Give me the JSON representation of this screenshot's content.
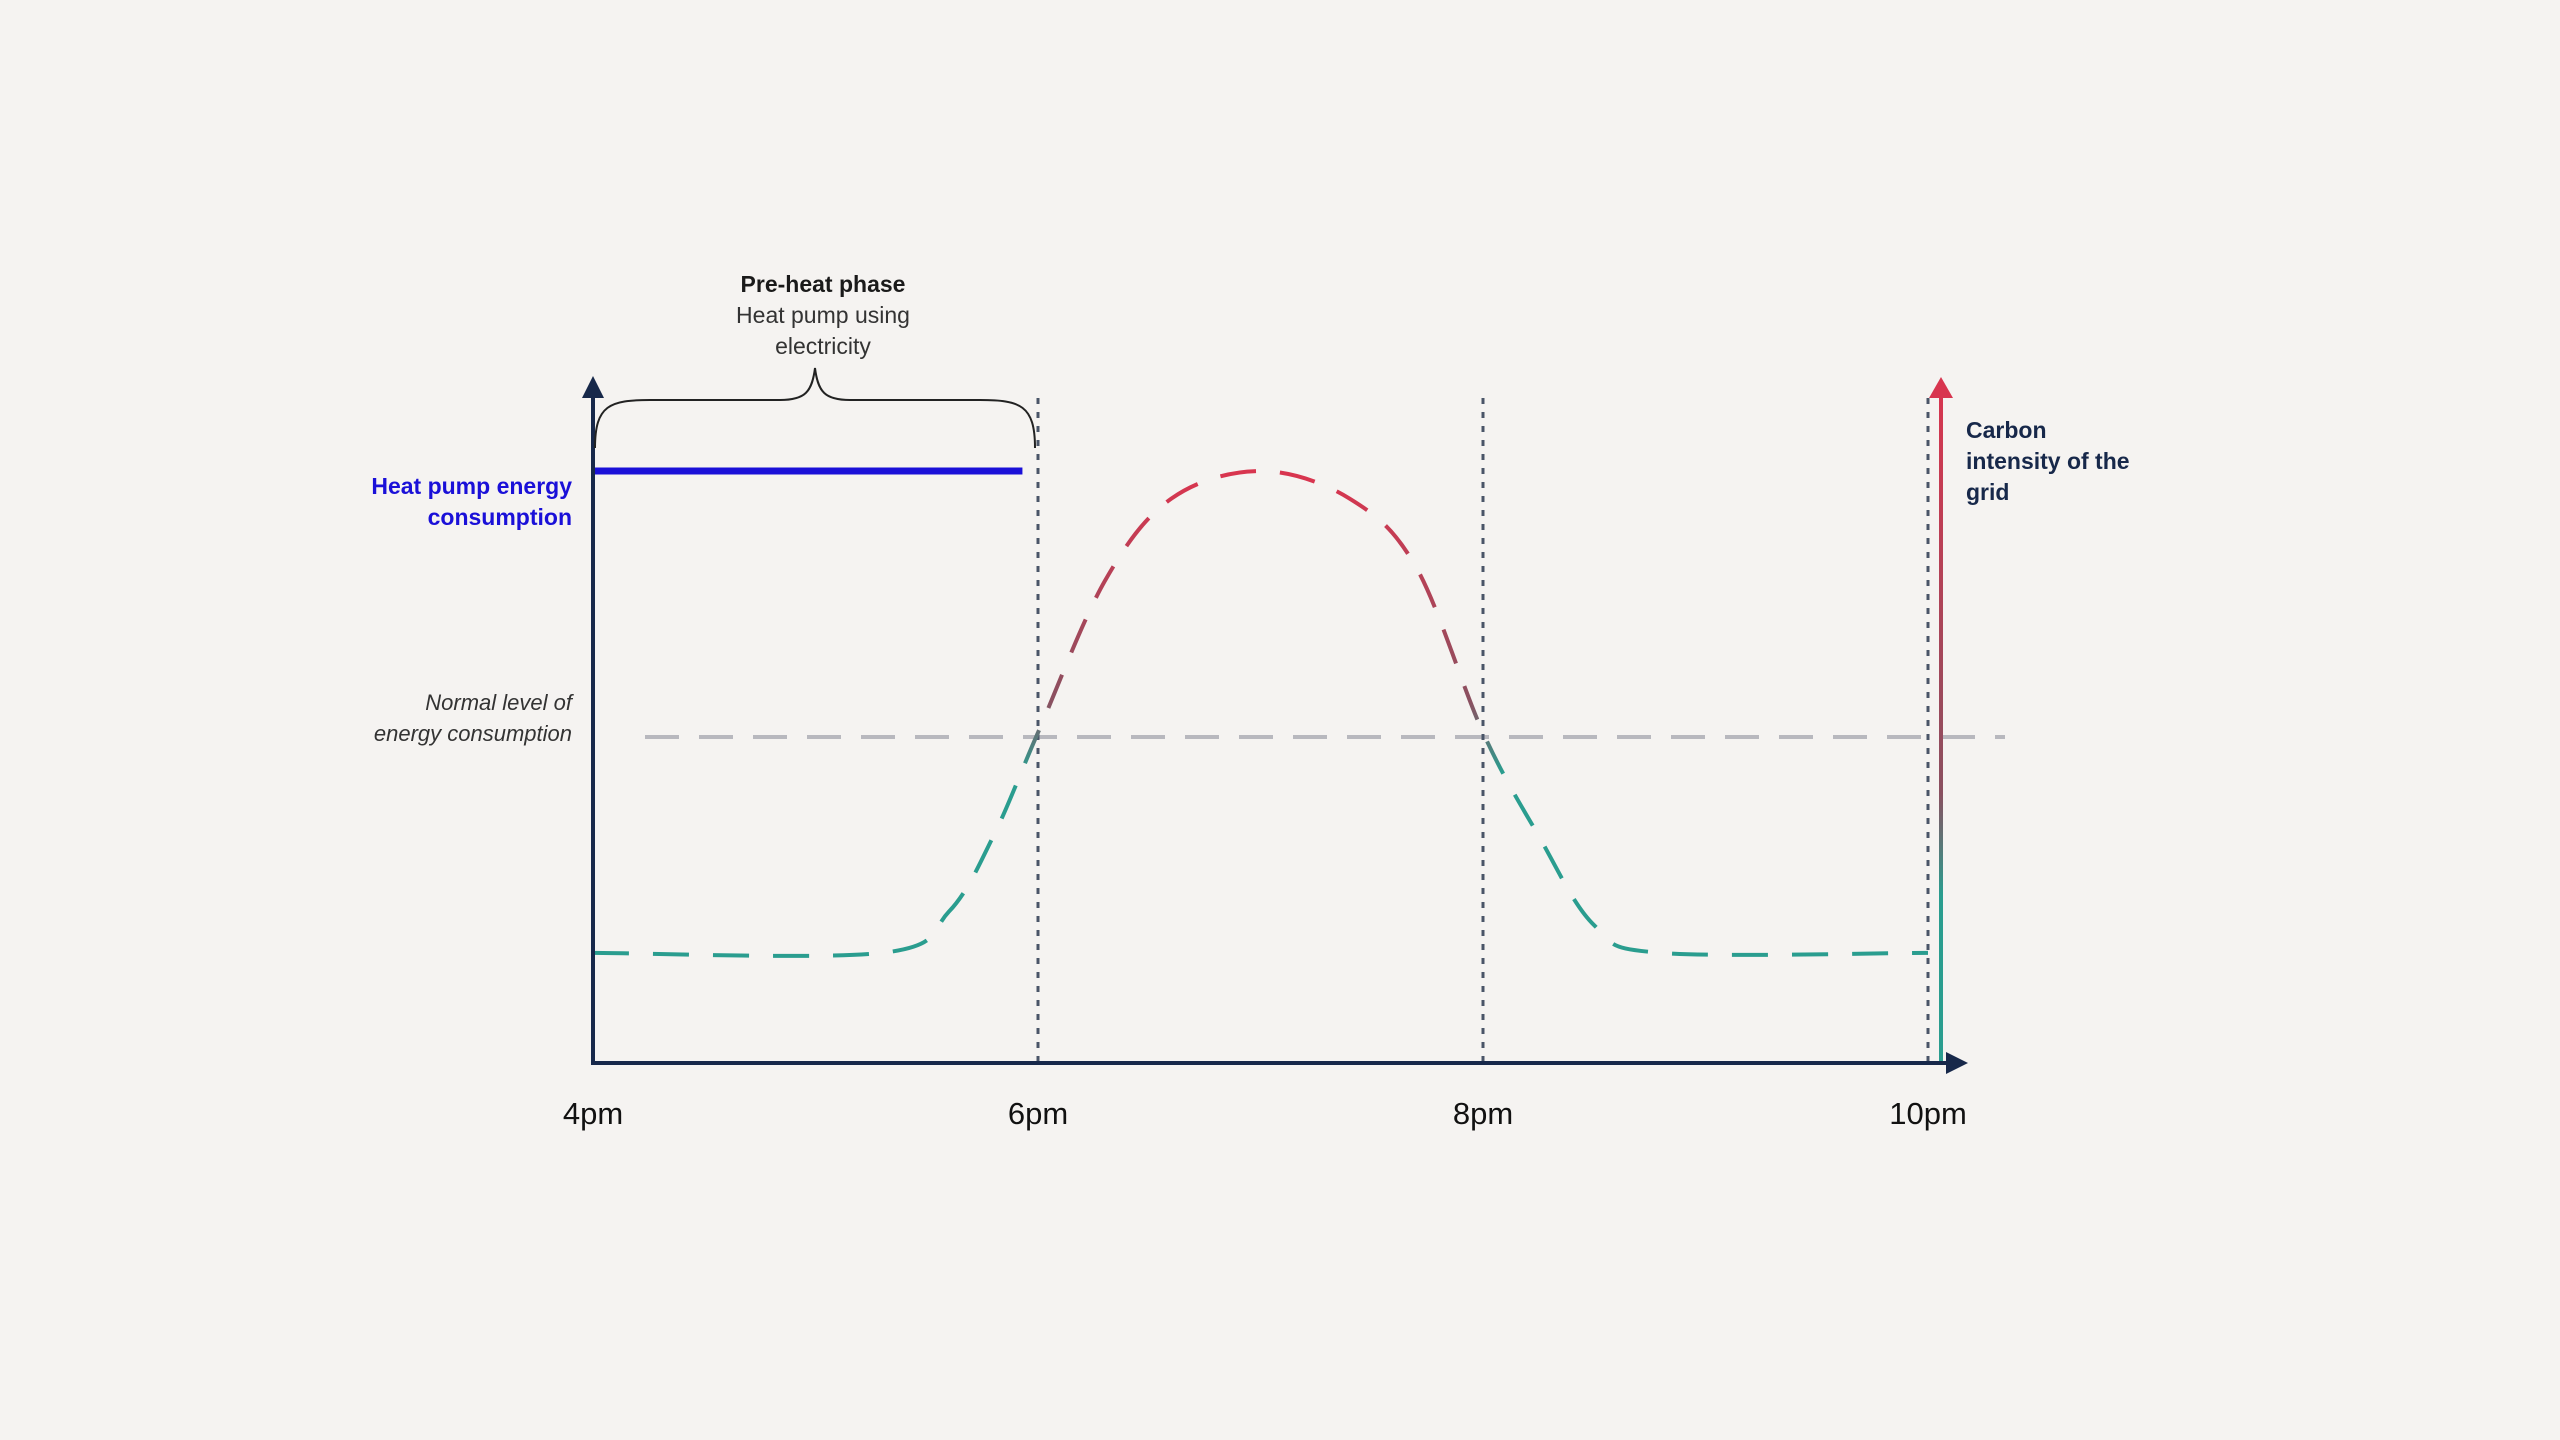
{
  "chart_data": {
    "type": "line",
    "x_ticks": [
      "4pm",
      "6pm",
      "8pm",
      "10pm"
    ],
    "annotations": {
      "preheat": {
        "title": "Pre-heat phase",
        "line1": "Heat pump using",
        "line2": "electricity"
      },
      "heat_pump_label": {
        "line1": "Heat pump energy",
        "line2": "consumption"
      },
      "normal_label": {
        "line1": "Normal level of",
        "line2": "energy consumption"
      },
      "carbon_label": {
        "line1": "Carbon",
        "line2": "intensity of the",
        "line3": "grid"
      }
    },
    "series": [
      {
        "name": "Heat pump energy consumption",
        "color": "#1a10d8",
        "style": "solid",
        "x_hours": [
          16,
          17.93
        ],
        "y_level": 0.86
      },
      {
        "name": "Carbon intensity of the grid",
        "color_low": "#2a9d8f",
        "color_high": "#d8354f",
        "style": "dashed",
        "x_hours": [
          16,
          17.3,
          17.6,
          17.8,
          18,
          18.3,
          18.6,
          19,
          19.4,
          19.7,
          20,
          20.25,
          20.5,
          20.8,
          22
        ],
        "values": [
          0.16,
          0.16,
          0.22,
          0.33,
          0.48,
          0.7,
          0.82,
          0.86,
          0.82,
          0.72,
          0.48,
          0.33,
          0.2,
          0.16,
          0.16
        ]
      }
    ],
    "normal_level": 0.48,
    "vertical_markers_hours": [
      18,
      20,
      22
    ]
  }
}
